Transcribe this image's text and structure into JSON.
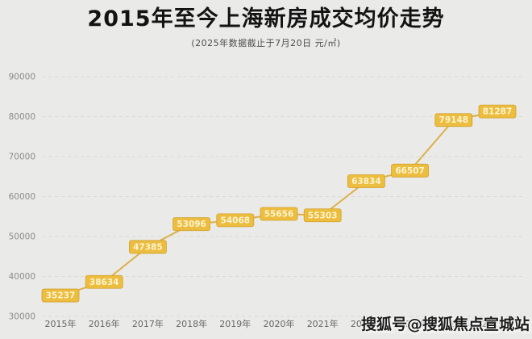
{
  "page": {
    "background": "#eaeae8"
  },
  "header": {
    "title": "2015年至今上海新房成交均价走势",
    "subtitle": "(2025年数据截止于7月20日  元/㎡)"
  },
  "watermark": {
    "text": "搜狐号@搜狐焦点宣城站"
  },
  "chart_data": {
    "type": "line",
    "title": "2015年至今上海新房成交均价走势",
    "subtitle": "(2025年数据截止于7月20日  元/㎡)",
    "categories": [
      "2015年",
      "2016年",
      "2017年",
      "2018年",
      "2019年",
      "2020年",
      "2021年",
      "2022年",
      "2023年",
      "2024年",
      "2025年"
    ],
    "values": [
      35237,
      38634,
      47385,
      53096,
      54068,
      55656,
      55303,
      63834,
      66507,
      79148,
      81287
    ],
    "yticks": [
      30000,
      40000,
      50000,
      60000,
      70000,
      80000,
      90000
    ],
    "ylim": [
      30000,
      90000
    ],
    "grid": true,
    "legend": "none",
    "colors": {
      "line": "#ddb04a",
      "label_bg": "#ecbd3e",
      "label_border": "#d2a22e",
      "label_text": "#fdf4d2",
      "grid_line": "#d9d8d4",
      "ytick_text": "#8b8b8b",
      "xtick_text": "#666666"
    }
  }
}
